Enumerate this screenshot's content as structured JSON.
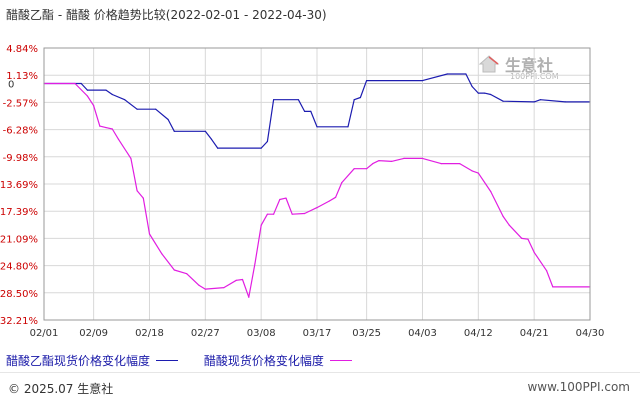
{
  "title": "醋酸乙酯 - 醋酸 价格趋势比较(2022-02-01 - 2022-04-30)",
  "watermark": {
    "name": "生意社",
    "url": "100PPI.COM"
  },
  "legend": [
    {
      "label": "醋酸乙酯现货价格变化幅度",
      "color": "#1c1cb0"
    },
    {
      "label": "醋酸现货价格变化幅度",
      "color": "#e11ee1"
    }
  ],
  "footer": {
    "copyright": "© 2025.07 生意社",
    "site": "www.100PPI.com"
  },
  "chart_data": {
    "type": "line",
    "x_ticks": [
      "02/01",
      "02/09",
      "02/18",
      "02/27",
      "03/08",
      "03/17",
      "03/25",
      "04/03",
      "04/12",
      "04/21",
      "04/30"
    ],
    "y_ticks": [
      "4.84%",
      "1.13%",
      "-2.57%",
      "-6.28%",
      "-9.98%",
      "-13.69%",
      "-17.39%",
      "-21.09%",
      "-24.80%",
      "-28.50%",
      "-32.21%"
    ],
    "zero_label": "0",
    "ylim": [
      -32.21,
      4.84
    ],
    "xlim": [
      "2022-02-01",
      "2022-04-30"
    ],
    "grid": true,
    "series": [
      {
        "name": "醋酸乙酯现货价格变化幅度",
        "color": "#1c1cb0",
        "points": [
          [
            "02/01",
            0
          ],
          [
            "02/07",
            0
          ],
          [
            "02/08",
            -0.9
          ],
          [
            "02/11",
            -0.9
          ],
          [
            "02/12",
            -1.5
          ],
          [
            "02/14",
            -2.2
          ],
          [
            "02/16",
            -3.5
          ],
          [
            "02/19",
            -3.5
          ],
          [
            "02/21",
            -4.9
          ],
          [
            "02/22",
            -6.5
          ],
          [
            "02/27",
            -6.5
          ],
          [
            "02/28",
            -7.6
          ],
          [
            "02/29",
            -8.8
          ],
          [
            "03/08",
            -8.8
          ],
          [
            "03/09",
            -7.9
          ],
          [
            "03/10",
            -2.2
          ],
          [
            "03/14",
            -2.2
          ],
          [
            "03/15",
            -3.8
          ],
          [
            "03/16",
            -3.8
          ],
          [
            "03/17",
            -5.9
          ],
          [
            "03/22",
            -5.9
          ],
          [
            "03/23",
            -2.2
          ],
          [
            "03/24",
            -1.9
          ],
          [
            "03/25",
            0.4
          ],
          [
            "04/03",
            0.4
          ],
          [
            "04/07",
            1.3
          ],
          [
            "04/10",
            1.3
          ],
          [
            "04/11",
            -0.4
          ],
          [
            "04/12",
            -1.3
          ],
          [
            "04/13",
            -1.3
          ],
          [
            "04/14",
            -1.5
          ],
          [
            "04/16",
            -2.4
          ],
          [
            "04/21",
            -2.5
          ],
          [
            "04/22",
            -2.2
          ],
          [
            "04/26",
            -2.5
          ],
          [
            "04/30",
            -2.5
          ]
        ]
      },
      {
        "name": "醋酸现货价格变化幅度",
        "color": "#e11ee1",
        "points": [
          [
            "02/01",
            0
          ],
          [
            "02/06",
            0
          ],
          [
            "02/08",
            -1.7
          ],
          [
            "02/09",
            -3.0
          ],
          [
            "02/10",
            -5.8
          ],
          [
            "02/11",
            -6.0
          ],
          [
            "02/12",
            -6.2
          ],
          [
            "02/13",
            -7.6
          ],
          [
            "02/15",
            -10.2
          ],
          [
            "02/16",
            -14.6
          ],
          [
            "02/17",
            -15.6
          ],
          [
            "02/18",
            -20.5
          ],
          [
            "02/20",
            -23.2
          ],
          [
            "02/22",
            -25.4
          ],
          [
            "02/24",
            -25.9
          ],
          [
            "02/26",
            -27.5
          ],
          [
            "02/27",
            -28.0
          ],
          [
            "03/02",
            -27.8
          ],
          [
            "03/04",
            -26.8
          ],
          [
            "03/05",
            -26.7
          ],
          [
            "03/06",
            -29.1
          ],
          [
            "03/07",
            -24.5
          ],
          [
            "03/08",
            -19.3
          ],
          [
            "03/09",
            -17.8
          ],
          [
            "03/10",
            -17.8
          ],
          [
            "03/11",
            -15.8
          ],
          [
            "03/12",
            -15.6
          ],
          [
            "03/13",
            -17.8
          ],
          [
            "03/15",
            -17.7
          ],
          [
            "03/17",
            -16.9
          ],
          [
            "03/19",
            -16.0
          ],
          [
            "03/20",
            -15.5
          ],
          [
            "03/21",
            -13.5
          ],
          [
            "03/23",
            -11.6
          ],
          [
            "03/25",
            -11.6
          ],
          [
            "03/26",
            -10.9
          ],
          [
            "03/27",
            -10.5
          ],
          [
            "03/29",
            -10.6
          ],
          [
            "03/31",
            -10.2
          ],
          [
            "04/03",
            -10.2
          ],
          [
            "04/06",
            -10.9
          ],
          [
            "04/09",
            -10.9
          ],
          [
            "04/11",
            -11.9
          ],
          [
            "04/12",
            -12.2
          ],
          [
            "04/14",
            -14.7
          ],
          [
            "04/16",
            -18.1
          ],
          [
            "04/17",
            -19.3
          ],
          [
            "04/19",
            -21.1
          ],
          [
            "04/20",
            -21.2
          ],
          [
            "04/21",
            -23.0
          ],
          [
            "04/23",
            -25.5
          ],
          [
            "04/24",
            -27.7
          ],
          [
            "04/30",
            -27.7
          ]
        ]
      }
    ]
  }
}
